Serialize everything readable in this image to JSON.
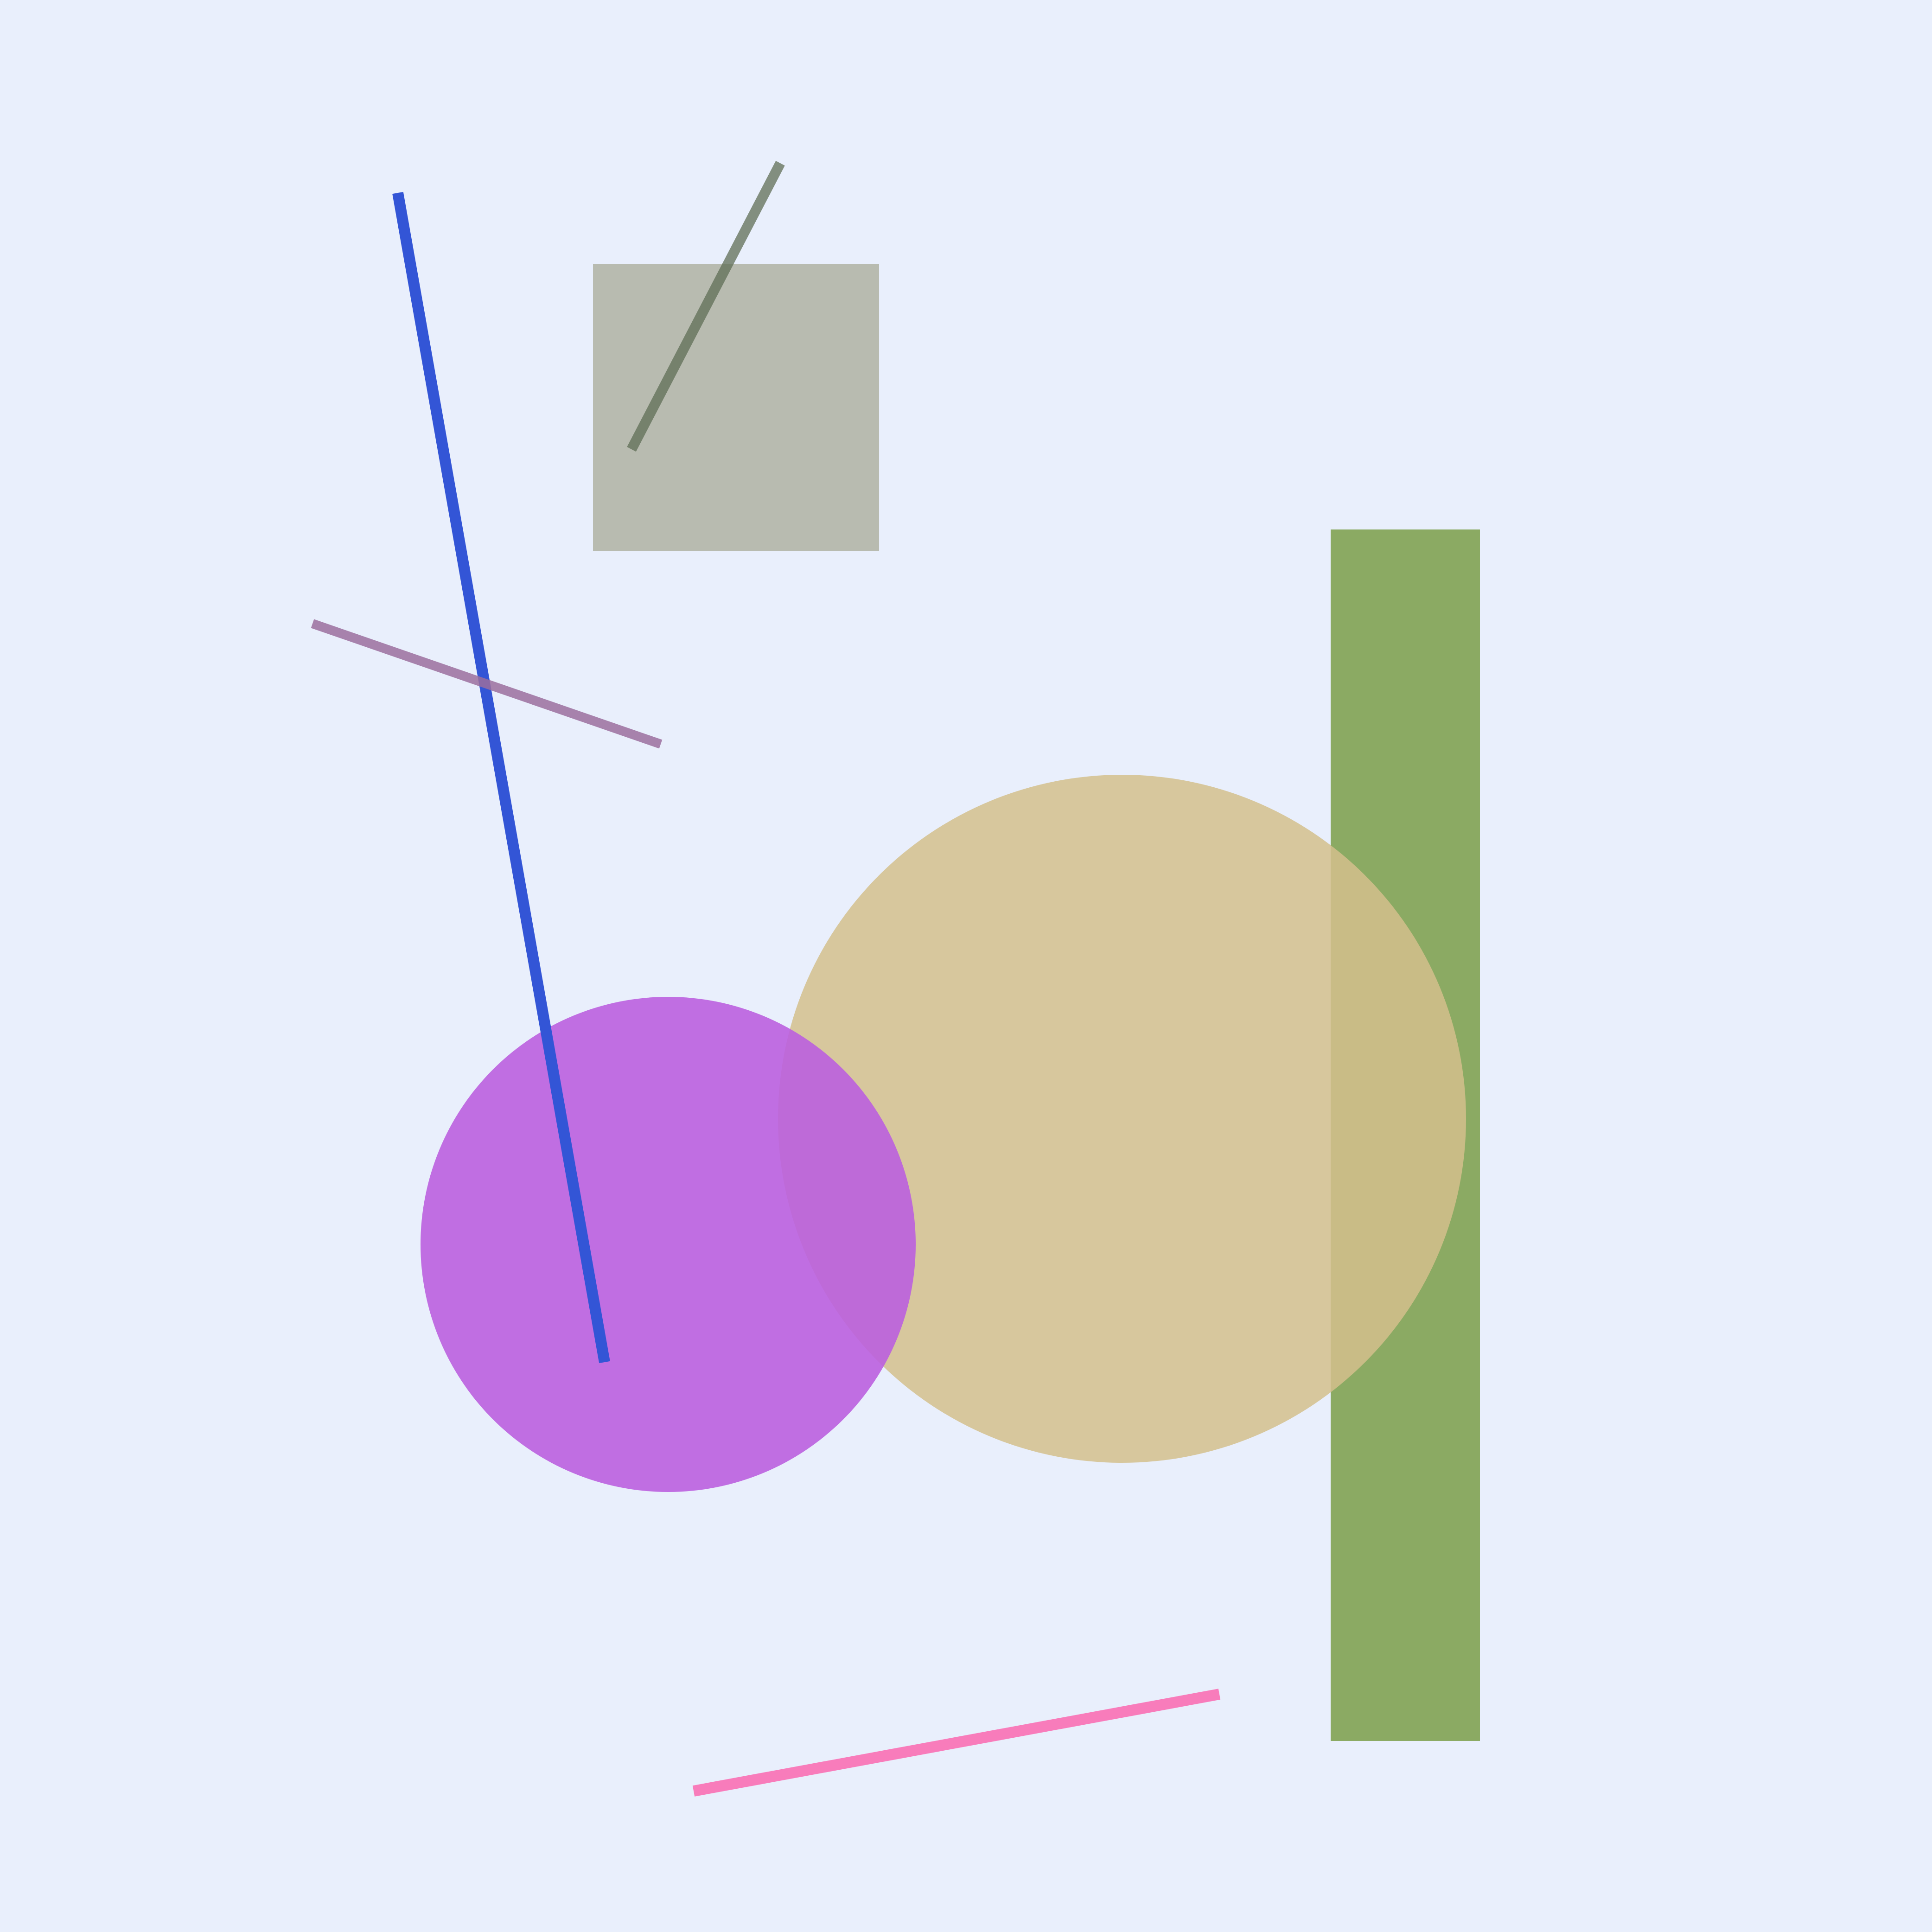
{
  "background": "#e9effc",
  "shapes": [
    {
      "name": "gray-square",
      "kind": "rect",
      "color": "#b8bbb0"
    },
    {
      "name": "green-bar",
      "kind": "rect",
      "color": "#7a9e48",
      "opacity": 0.85
    },
    {
      "name": "tan-circle",
      "kind": "circle",
      "color": "#d4c08c",
      "opacity": 0.85
    },
    {
      "name": "purple-circle",
      "kind": "circle",
      "color": "#bb5fdf",
      "opacity": 0.9
    },
    {
      "name": "blue-line",
      "kind": "line",
      "color": "#3355d6"
    },
    {
      "name": "mauve-line",
      "kind": "line",
      "color": "#9b6f9d",
      "opacity": 0.85
    },
    {
      "name": "dark-green-line",
      "kind": "line",
      "color": "#5f6e55",
      "opacity": 0.75
    },
    {
      "name": "pink-line",
      "kind": "line",
      "color": "#f87cbb"
    }
  ]
}
